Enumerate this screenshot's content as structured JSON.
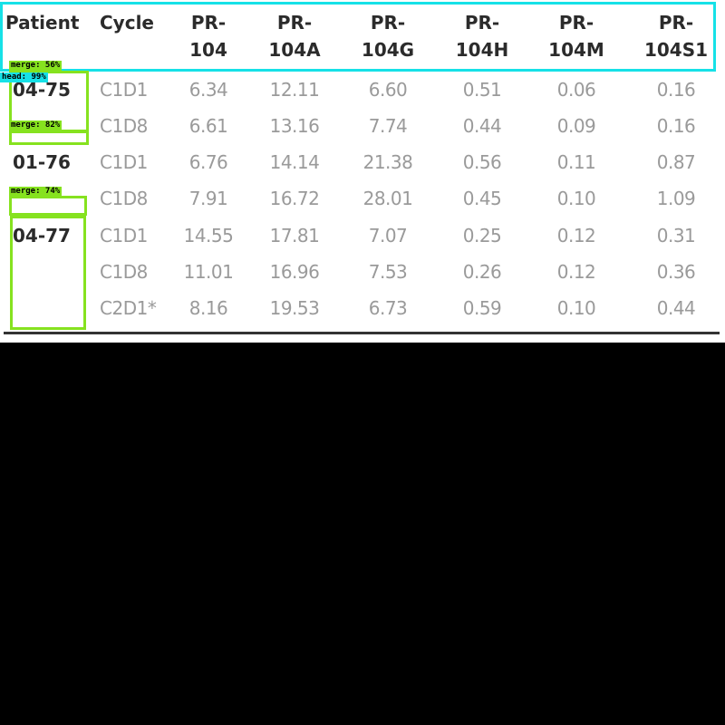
{
  "table": {
    "headers": [
      {
        "l1": "Patient",
        "l2": ""
      },
      {
        "l1": "Cycle",
        "l2": ""
      },
      {
        "l1": "PR-",
        "l2": "104"
      },
      {
        "l1": "PR-",
        "l2": "104A"
      },
      {
        "l1": "PR-",
        "l2": "104G"
      },
      {
        "l1": "PR-",
        "l2": "104H"
      },
      {
        "l1": "PR-",
        "l2": "104M"
      },
      {
        "l1": "PR-",
        "l2": "104S1"
      }
    ],
    "rows": [
      {
        "patient": "04-75",
        "cycle": "C1D1",
        "values": [
          "6.34",
          "12.11",
          "6.60",
          "0.51",
          "0.06",
          "0.16"
        ]
      },
      {
        "patient": "",
        "cycle": "C1D8",
        "values": [
          "6.61",
          "13.16",
          "7.74",
          "0.44",
          "0.09",
          "0.16"
        ]
      },
      {
        "patient": "01-76",
        "cycle": "C1D1",
        "values": [
          "6.76",
          "14.14",
          "21.38",
          "0.56",
          "0.11",
          "0.87"
        ]
      },
      {
        "patient": "",
        "cycle": "C1D8",
        "values": [
          "7.91",
          "16.72",
          "28.01",
          "0.45",
          "0.10",
          "1.09"
        ]
      },
      {
        "patient": "04-77",
        "cycle": "C1D1",
        "values": [
          "14.55",
          "17.81",
          "7.07",
          "0.25",
          "0.12",
          "0.31"
        ]
      },
      {
        "patient": "",
        "cycle": "C1D8",
        "values": [
          "11.01",
          "16.96",
          "7.53",
          "0.26",
          "0.12",
          "0.36"
        ]
      },
      {
        "patient": "",
        "cycle": "C2D1*",
        "values": [
          "8.16",
          "19.53",
          "6.73",
          "0.59",
          "0.10",
          "0.44"
        ]
      }
    ]
  },
  "overlays": {
    "labels": [
      "merge: 56%",
      "head: 99%",
      "merge: 82%",
      "merge: 74%"
    ],
    "colors": {
      "merge": "#86e21f",
      "head": "#16e1e7"
    }
  }
}
